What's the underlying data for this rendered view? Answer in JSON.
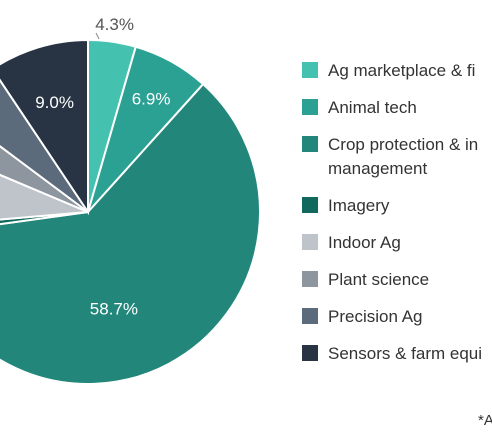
{
  "chart_data": {
    "type": "pie",
    "categories": [
      "Ag marketplace & fintech",
      "Animal tech",
      "Crop protection & input management",
      "Imagery",
      "Indoor Ag",
      "Plant science",
      "Precision Ag",
      "Sensors & farm equipment"
    ],
    "legend_labels": [
      "Ag marketplace & fi",
      "Animal tech",
      "Crop protection & in\nmanagement",
      "Imagery",
      "Indoor Ag",
      "Plant science",
      "Precision Ag",
      "Sensors & farm equi"
    ],
    "values": [
      4.3,
      6.9,
      58.7,
      0.8,
      7.4,
      3.7,
      5.2,
      9.0
    ],
    "data_labels": [
      "4.3%",
      "6.9%",
      "58.7%",
      "",
      "",
      "",
      "",
      "9.0%"
    ],
    "colors": [
      "#45c1b0",
      "#2aa193",
      "#22877a",
      "#11695d",
      "#bfc4cb",
      "#8d959f",
      "#5b6b7c",
      "#283444"
    ],
    "legend_position": "right",
    "footnote": "*A"
  }
}
